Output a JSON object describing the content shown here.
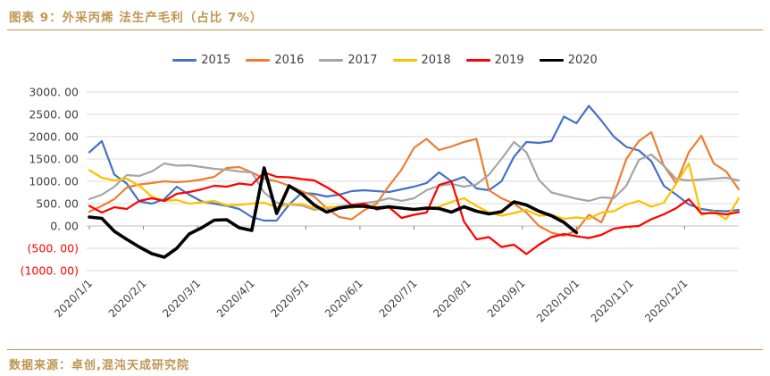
{
  "header": {
    "title": "图表 9：外采丙烯 法生产毛利（占比 7%）"
  },
  "footer": {
    "source": "数据来源：卓创,混沌天成研究院"
  },
  "colors": {
    "accent_gold": "#C09552",
    "grid": "#D9D9D9",
    "zero_axis": "#BFBFBF",
    "tick": "#808080",
    "axis_text": "#404040",
    "negative_label": "#FF0000"
  },
  "chart_data": {
    "type": "line",
    "title": "外采丙烯法生产毛利（占比7%）",
    "x_unit": "weekly points across one year (Jan–Dec)",
    "ylim": [
      -1000,
      3000
    ],
    "grid": true,
    "legend_position": "top-center",
    "y_ticks": [
      {
        "label": "3000. 00",
        "value": 3000,
        "negative": false
      },
      {
        "label": "2500. 00",
        "value": 2500,
        "negative": false
      },
      {
        "label": "2000. 00",
        "value": 2000,
        "negative": false
      },
      {
        "label": "1500. 00",
        "value": 1500,
        "negative": false
      },
      {
        "label": "1000. 00",
        "value": 1000,
        "negative": false
      },
      {
        "label": "500. 00",
        "value": 500,
        "negative": false
      },
      {
        "label": "0. 00",
        "value": 0,
        "negative": false
      },
      {
        "label": "(500. 00)",
        "value": -500,
        "negative": true
      },
      {
        "label": "(1000. 00)",
        "value": -1000,
        "negative": true
      }
    ],
    "x_ticks": [
      {
        "label": "2020/1/1"
      },
      {
        "label": "2020/2/1"
      },
      {
        "label": "2020/3/1"
      },
      {
        "label": "2020/4/1"
      },
      {
        "label": "2020/5/1"
      },
      {
        "label": "2020/6/1"
      },
      {
        "label": "2020/7/1"
      },
      {
        "label": "2020/8/1"
      },
      {
        "label": "2020/9/1"
      },
      {
        "label": "2020/10/1"
      },
      {
        "label": "2020/11/1"
      },
      {
        "label": "2020/12/1"
      }
    ],
    "series": [
      {
        "name": "2015",
        "color": "#4472C4",
        "width": 2.2,
        "values": [
          1650,
          1900,
          1150,
          950,
          550,
          500,
          600,
          880,
          700,
          550,
          500,
          450,
          380,
          200,
          120,
          120,
          480,
          740,
          720,
          660,
          700,
          780,
          800,
          780,
          760,
          820,
          880,
          960,
          1200,
          1000,
          1100,
          840,
          800,
          1000,
          1550,
          1880,
          1860,
          1900,
          2450,
          2300,
          2690,
          2360,
          2000,
          1770,
          1690,
          1450,
          900,
          700,
          480,
          380,
          340,
          330,
          360
        ]
      },
      {
        "name": "2016",
        "color": "#ED7D31",
        "width": 2.2,
        "values": [
          320,
          450,
          600,
          860,
          930,
          960,
          1000,
          980,
          1000,
          1040,
          1100,
          1300,
          1320,
          1200,
          1060,
          1000,
          900,
          780,
          660,
          400,
          200,
          150,
          350,
          500,
          900,
          1260,
          1750,
          1950,
          1700,
          1780,
          1880,
          1950,
          800,
          620,
          500,
          300,
          0,
          -150,
          -220,
          -100,
          250,
          80,
          700,
          1500,
          1900,
          2100,
          1350,
          950,
          1650,
          2020,
          1400,
          1220,
          820
        ]
      },
      {
        "name": "2017",
        "color": "#A5A5A5",
        "width": 2.2,
        "values": [
          600,
          700,
          880,
          1140,
          1120,
          1220,
          1400,
          1350,
          1360,
          1320,
          1280,
          1260,
          1220,
          1200,
          750,
          520,
          480,
          460,
          360,
          400,
          440,
          470,
          510,
          550,
          620,
          560,
          620,
          800,
          900,
          940,
          880,
          930,
          1150,
          1500,
          1880,
          1650,
          1030,
          750,
          680,
          610,
          560,
          640,
          620,
          900,
          1480,
          1600,
          1350,
          1050,
          1020,
          1040,
          1060,
          1080,
          1020
        ]
      },
      {
        "name": "2018",
        "color": "#FFC000",
        "width": 2.2,
        "values": [
          1250,
          1080,
          1020,
          1060,
          900,
          660,
          560,
          580,
          500,
          530,
          560,
          460,
          470,
          500,
          520,
          420,
          490,
          490,
          400,
          420,
          430,
          400,
          470,
          430,
          400,
          400,
          370,
          400,
          430,
          540,
          620,
          450,
          300,
          230,
          290,
          360,
          230,
          250,
          160,
          190,
          160,
          300,
          330,
          480,
          560,
          430,
          520,
          950,
          1400,
          250,
          320,
          150,
          620
        ]
      },
      {
        "name": "2019",
        "color": "#FF0000",
        "width": 2.2,
        "values": [
          450,
          300,
          420,
          380,
          560,
          620,
          560,
          720,
          760,
          820,
          900,
          880,
          950,
          920,
          1200,
          1100,
          1090,
          1050,
          1020,
          870,
          700,
          470,
          500,
          370,
          420,
          180,
          250,
          300,
          920,
          1000,
          100,
          -300,
          -250,
          -470,
          -420,
          -630,
          -420,
          -250,
          -180,
          -230,
          -270,
          -200,
          -60,
          -20,
          0,
          150,
          260,
          400,
          600,
          280,
          290,
          260,
          310
        ]
      },
      {
        "name": "2020",
        "color": "#000000",
        "width": 3.6,
        "values": [
          200,
          170,
          -120,
          -300,
          -470,
          -620,
          -700,
          -500,
          -180,
          -40,
          130,
          140,
          -40,
          -100,
          1300,
          280,
          900,
          720,
          470,
          310,
          400,
          440,
          440,
          400,
          430,
          400,
          370,
          400,
          390,
          310,
          430,
          330,
          270,
          320,
          540,
          470,
          330,
          230,
          80,
          -150
        ]
      }
    ]
  }
}
